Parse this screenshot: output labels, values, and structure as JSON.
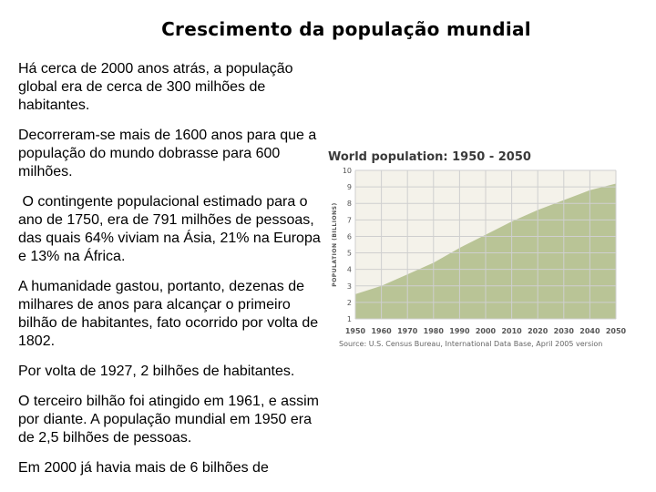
{
  "slide": {
    "title": "Crescimento da população mundial",
    "paragraphs": [
      "Há cerca de 2000 anos atrás, a população global era de cerca de 300 milhões de habitantes.",
      "Decorreram-se mais de 1600 anos para que a população do mundo dobrasse para 600 milhões.",
      " O contingente populacional estimado para o ano de 1750, era de 791 milhões de pessoas, das quais 64% viviam na Ásia, 21% na Europa e 13% na África.",
      "A humanidade gastou, portanto, dezenas de milhares de anos para alcançar o primeiro bilhão de habitantes, fato ocorrido por volta de 1802.",
      "Por volta de 1927, 2 bilhões de habitantes.",
      "O terceiro bilhão foi atingido em 1961, e assim por diante. A população mundial em 1950 era de 2,5 bilhões de pessoas.",
      "Em 2000 já havia mais de 6 bilhões de"
    ]
  },
  "chart_data": {
    "type": "area",
    "title": "World population: 1950 - 2050",
    "ylabel": "POPULATION (BILLIONS)",
    "xlabel": "",
    "x": [
      1950,
      1960,
      1970,
      1980,
      1990,
      2000,
      2010,
      2020,
      2030,
      2040,
      2050
    ],
    "series": [
      {
        "values": [
          2.5,
          3.0,
          3.7,
          4.4,
          5.3,
          6.1,
          6.9,
          7.6,
          8.2,
          8.8,
          9.2
        ]
      }
    ],
    "xlim": [
      1950,
      2050
    ],
    "ylim": [
      1,
      10
    ],
    "yticks": [
      1,
      2,
      3,
      4,
      5,
      6,
      7,
      8,
      9,
      10
    ],
    "xticks": [
      "1950",
      "1960",
      "1970",
      "1980",
      "1990",
      "2000",
      "2010",
      "2020",
      "2030",
      "2040",
      "2050"
    ],
    "grid": true,
    "legend": "none",
    "source": "Source: U.S. Census Bureau, International Data Base, April 2005 version",
    "colors": {
      "fill": "#b9c496",
      "grid": "#cfcfcf",
      "plot_bg": "#f4f2ea"
    }
  }
}
